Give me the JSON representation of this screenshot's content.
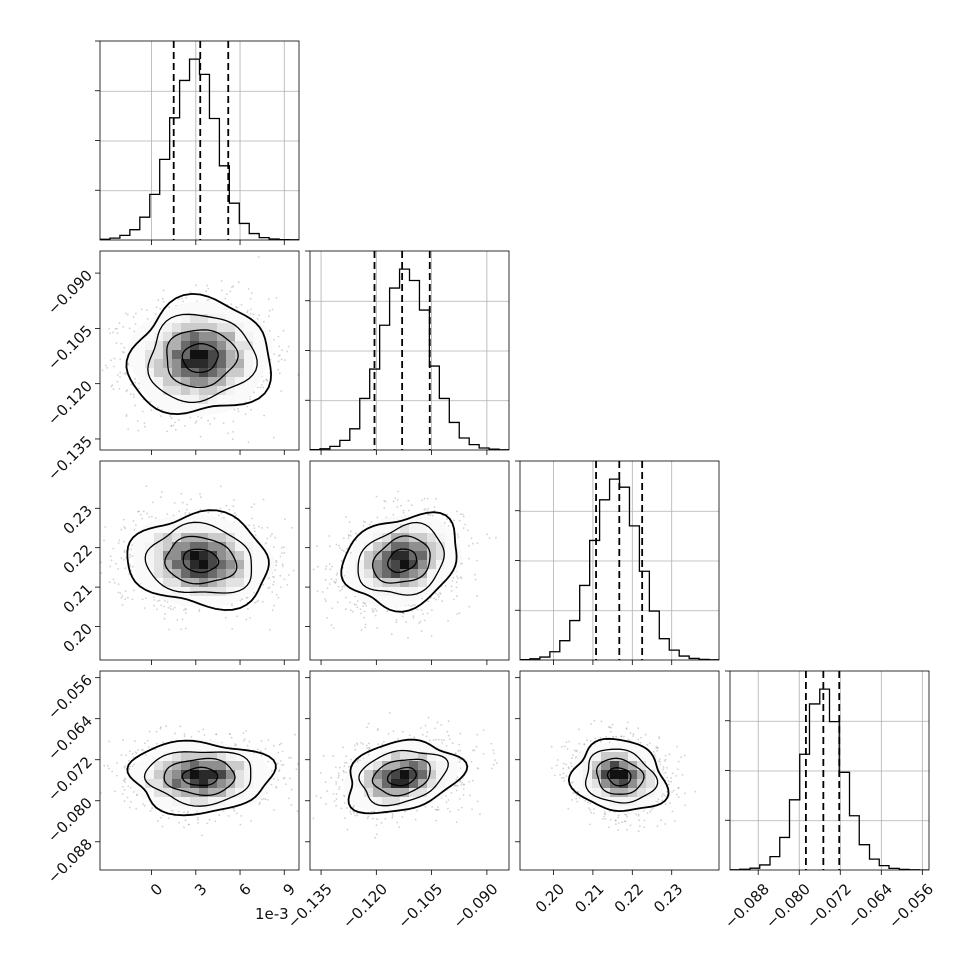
{
  "chart_data": {
    "type": "corner",
    "offset_label": "1e-3",
    "quantile_fractions": [
      0.16,
      0.5,
      0.84
    ],
    "params": [
      {
        "range": [
          -3.5,
          10.0
        ],
        "ticks": [
          0,
          3,
          6,
          9
        ],
        "tick_labels": [
          "0",
          "3",
          "6",
          "9"
        ],
        "quantiles": [
          1.5,
          3.3,
          5.2
        ],
        "hist_edges": [
          -3.5,
          -2.825,
          -2.15,
          -1.475,
          -0.8,
          -0.125,
          0.55,
          1.225,
          1.9,
          2.575,
          3.25,
          3.925,
          4.6,
          5.275,
          5.95,
          6.625,
          7.3,
          7.975,
          8.65,
          9.325,
          10.0
        ],
        "hist_counts": [
          4,
          10,
          25,
          56,
          124,
          248,
          438,
          664,
          867,
          983,
          900,
          660,
          403,
          200,
          90,
          35,
          13,
          5,
          2,
          1
        ]
      },
      {
        "range": [
          -0.138,
          -0.084
        ],
        "ticks": [
          -0.135,
          -0.12,
          -0.105,
          -0.09
        ],
        "tick_labels": [
          "−0.135",
          "−0.120",
          "−0.105",
          "−0.090"
        ],
        "quantiles": [
          -0.1205,
          -0.113,
          -0.1055
        ],
        "hist_edges": [
          -0.138,
          -0.1353,
          -0.1326,
          -0.1299,
          -0.1272,
          -0.1245,
          -0.1218,
          -0.1191,
          -0.1164,
          -0.1137,
          -0.111,
          -0.1083,
          -0.1056,
          -0.1029,
          -0.1002,
          -0.0975,
          -0.0948,
          -0.0921,
          -0.0894,
          -0.0867,
          -0.084
        ],
        "hist_counts": [
          2,
          6,
          18,
          48,
          106,
          258,
          405,
          624,
          810,
          905,
          848,
          700,
          420,
          258,
          138,
          60,
          27,
          10,
          4,
          1
        ]
      },
      {
        "range": [
          0.1915,
          0.242
        ],
        "ticks": [
          0.2,
          0.21,
          0.22,
          0.23
        ],
        "tick_labels": [
          "0.20",
          "0.21",
          "0.22",
          "0.23"
        ],
        "quantiles": [
          0.2108,
          0.2167,
          0.2225
        ],
        "hist_edges": [
          0.1915,
          0.19403,
          0.19655,
          0.19908,
          0.2016,
          0.20413,
          0.20665,
          0.20918,
          0.2117,
          0.21423,
          0.21675,
          0.21928,
          0.2218,
          0.22433,
          0.22685,
          0.22938,
          0.2319,
          0.23443,
          0.23695,
          0.23948,
          0.242
        ],
        "hist_counts": [
          2,
          6,
          15,
          42,
          98,
          200,
          378,
          606,
          812,
          917,
          876,
          680,
          450,
          248,
          108,
          50,
          20,
          8,
          3,
          1
        ]
      },
      {
        "range": [
          -0.0935,
          -0.0547
        ],
        "ticks": [
          -0.088,
          -0.08,
          -0.072,
          -0.064,
          -0.056
        ],
        "tick_labels": [
          "−0.088",
          "−0.080",
          "−0.072",
          "−0.064",
          "−0.056"
        ],
        "quantiles": [
          -0.0787,
          -0.0753,
          -0.0722
        ],
        "hist_edges": [
          -0.0935,
          -0.0916,
          -0.0896,
          -0.0877,
          -0.0857,
          -0.0838,
          -0.0819,
          -0.0799,
          -0.078,
          -0.076,
          -0.0741,
          -0.0722,
          -0.0702,
          -0.0683,
          -0.0663,
          -0.0644,
          -0.0625,
          -0.0605,
          -0.0586,
          -0.0566,
          -0.0547
        ],
        "hist_counts": [
          1,
          4,
          10,
          28,
          74,
          180,
          388,
          640,
          918,
          1000,
          820,
          540,
          300,
          140,
          60,
          24,
          9,
          3,
          1,
          0
        ]
      }
    ],
    "pairs": [
      {
        "row": 1,
        "col": 0,
        "center": [
          3.3,
          -0.113
        ],
        "sigma": [
          2.4,
          0.0078
        ],
        "rho": 0.05
      },
      {
        "row": 2,
        "col": 0,
        "center": [
          3.3,
          0.2167
        ],
        "sigma": [
          2.4,
          0.0059
        ],
        "rho": -0.08
      },
      {
        "row": 2,
        "col": 1,
        "center": [
          -0.113,
          0.2167
        ],
        "sigma": [
          0.0078,
          0.0059
        ],
        "rho": 0.2
      },
      {
        "row": 3,
        "col": 0,
        "center": [
          3.3,
          -0.0753
        ],
        "sigma": [
          2.4,
          0.0035
        ],
        "rho": 0.0
      },
      {
        "row": 3,
        "col": 1,
        "center": [
          -0.113,
          -0.0753
        ],
        "sigma": [
          0.0078,
          0.0035
        ],
        "rho": 0.25
      },
      {
        "row": 3,
        "col": 2,
        "center": [
          0.2167,
          -0.0753
        ],
        "sigma": [
          0.0059,
          0.0035
        ],
        "rho": -0.12
      }
    ],
    "contour_levels_sigma": [
      0.5,
      1.0,
      1.5,
      2.0
    ],
    "grid": true
  }
}
